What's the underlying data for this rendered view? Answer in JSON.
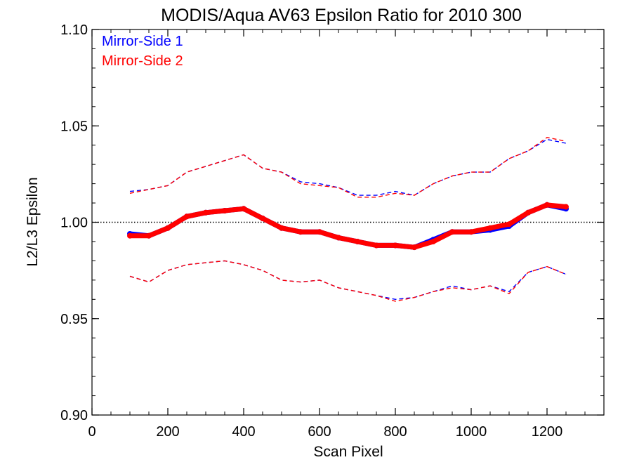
{
  "chart_data": {
    "type": "line",
    "title": "MODIS/Aqua AV63 Epsilon Ratio for 2010 300",
    "xlabel": "Scan Pixel",
    "ylabel": "L2/L3 Epsilon",
    "xlim": [
      0,
      1350
    ],
    "ylim": [
      0.9,
      1.1
    ],
    "xticks": [
      0,
      200,
      400,
      600,
      800,
      1000,
      1200
    ],
    "yticks": [
      0.9,
      0.95,
      1.0,
      1.05,
      1.1
    ],
    "xtick_labels": [
      "0",
      "200",
      "400",
      "600",
      "800",
      "1000",
      "1200"
    ],
    "ytick_labels": [
      "0.90",
      "0.95",
      "1.00",
      "1.05",
      "1.10"
    ],
    "reference_line": 1.0,
    "grid": false,
    "legend_position": "top-left",
    "x": [
      100,
      150,
      200,
      250,
      300,
      350,
      400,
      450,
      500,
      550,
      600,
      650,
      700,
      750,
      800,
      850,
      900,
      950,
      1000,
      1050,
      1100,
      1150,
      1200,
      1250
    ],
    "series": [
      {
        "name": "Mirror-Side 1",
        "color": "#0000ff",
        "mean": [
          0.994,
          0.993,
          0.997,
          1.003,
          1.005,
          1.006,
          1.007,
          1.002,
          0.997,
          0.995,
          0.995,
          0.992,
          0.99,
          0.988,
          0.988,
          0.987,
          0.991,
          0.995,
          0.995,
          0.996,
          0.998,
          1.005,
          1.009,
          1.007
        ],
        "upper": [
          1.016,
          1.017,
          1.019,
          1.026,
          1.029,
          1.032,
          1.035,
          1.028,
          1.026,
          1.021,
          1.02,
          1.018,
          1.014,
          1.014,
          1.016,
          1.014,
          1.02,
          1.024,
          1.026,
          1.026,
          1.033,
          1.037,
          1.043,
          1.041
        ],
        "lower": [
          0.972,
          0.969,
          0.975,
          0.978,
          0.979,
          0.98,
          0.978,
          0.975,
          0.97,
          0.969,
          0.97,
          0.966,
          0.964,
          0.962,
          0.96,
          0.961,
          0.964,
          0.967,
          0.965,
          0.967,
          0.964,
          0.974,
          0.977,
          0.973
        ]
      },
      {
        "name": "Mirror-Side 2",
        "color": "#ff0000",
        "mean": [
          0.993,
          0.993,
          0.997,
          1.003,
          1.005,
          1.006,
          1.007,
          1.002,
          0.997,
          0.995,
          0.995,
          0.992,
          0.99,
          0.988,
          0.988,
          0.987,
          0.99,
          0.995,
          0.995,
          0.997,
          0.999,
          1.005,
          1.009,
          1.008
        ],
        "upper": [
          1.015,
          1.017,
          1.019,
          1.026,
          1.029,
          1.032,
          1.035,
          1.028,
          1.026,
          1.02,
          1.019,
          1.018,
          1.013,
          1.013,
          1.015,
          1.014,
          1.02,
          1.024,
          1.026,
          1.026,
          1.033,
          1.037,
          1.044,
          1.042
        ],
        "lower": [
          0.972,
          0.969,
          0.975,
          0.978,
          0.979,
          0.98,
          0.978,
          0.975,
          0.97,
          0.969,
          0.97,
          0.966,
          0.964,
          0.962,
          0.959,
          0.961,
          0.964,
          0.966,
          0.965,
          0.967,
          0.963,
          0.974,
          0.977,
          0.973
        ]
      }
    ]
  }
}
